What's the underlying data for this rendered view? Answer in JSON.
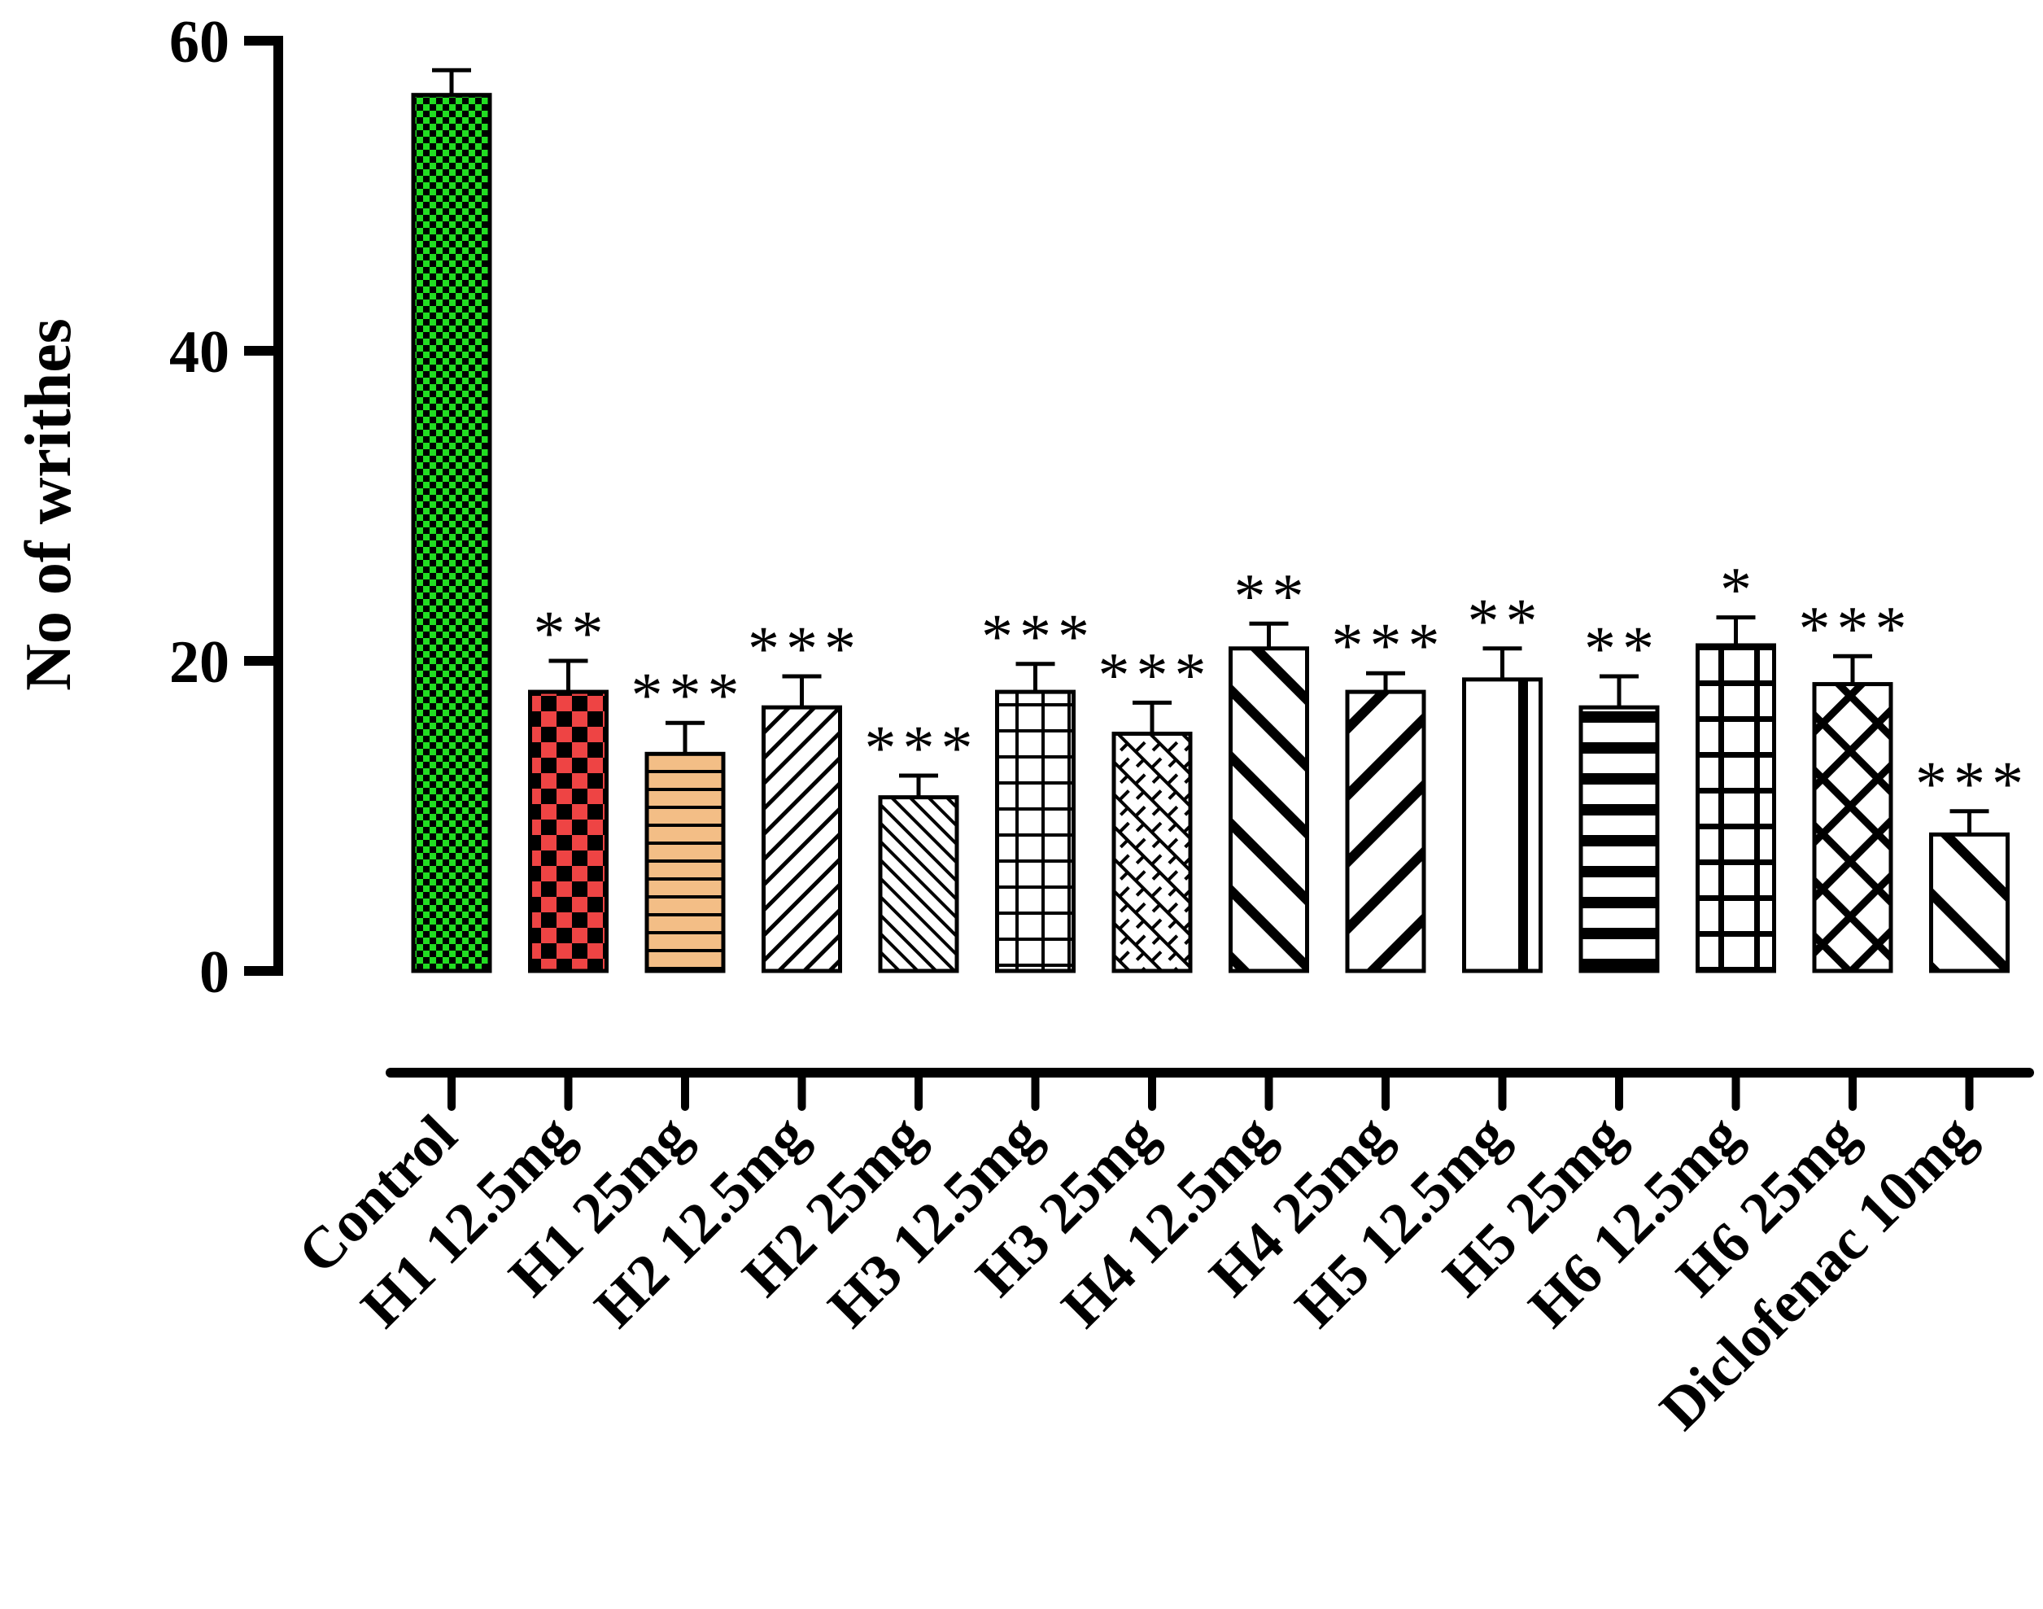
{
  "chart_data": {
    "type": "bar",
    "title": "",
    "xlabel": "",
    "ylabel": "No of writhes",
    "ylim": [
      0,
      60
    ],
    "yticks": [
      "0",
      "20",
      "40",
      "60"
    ],
    "grid": false,
    "categories": [
      "Control",
      "H1 12.5mg",
      "H1 25mg",
      "H2 12.5mg",
      "H2 25mg",
      "H3 12.5mg",
      "H3 25mg",
      "H4 12.5mg",
      "H4 25mg",
      "H5 12.5mg",
      "H5 25mg",
      "H6 12.5mg",
      "H6 25mg",
      "Diclofenac 10mg"
    ],
    "values": [
      56.5,
      18,
      14,
      17,
      11.2,
      18,
      15.3,
      20.8,
      18,
      18.8,
      17,
      21,
      18.5,
      8.8
    ],
    "errors": [
      1.6,
      2,
      2,
      2,
      1.4,
      1.8,
      2,
      1.6,
      1.2,
      2,
      2,
      1.8,
      1.8,
      1.5
    ],
    "significance": [
      "",
      "**",
      "***",
      "***",
      "***",
      "***",
      "***",
      "**",
      "***",
      "**",
      "**",
      "*",
      "***",
      "***"
    ],
    "bar_styles": [
      {
        "pattern": "checker-small",
        "fill": "#22dd22",
        "ink": "#000000"
      },
      {
        "pattern": "checker-large",
        "fill": "#ee4444",
        "ink": "#000000"
      },
      {
        "pattern": "hlines-thin",
        "fill": "#f3be86",
        "ink": "#000000"
      },
      {
        "pattern": "diag-up-thin",
        "fill": "#ffffff",
        "ink": "#000000"
      },
      {
        "pattern": "diag-down-thin",
        "fill": "#ffffff",
        "ink": "#000000"
      },
      {
        "pattern": "grid",
        "fill": "#ffffff",
        "ink": "#000000"
      },
      {
        "pattern": "brick",
        "fill": "#ffffff",
        "ink": "#000000"
      },
      {
        "pattern": "diag-down-thick",
        "fill": "#ffffff",
        "ink": "#000000"
      },
      {
        "pattern": "diag-up-thick",
        "fill": "#ffffff",
        "ink": "#000000"
      },
      {
        "pattern": "vline-thick",
        "fill": "#ffffff",
        "ink": "#000000"
      },
      {
        "pattern": "hlines-thick",
        "fill": "#ffffff",
        "ink": "#000000"
      },
      {
        "pattern": "grid-thick",
        "fill": "#ffffff",
        "ink": "#000000"
      },
      {
        "pattern": "crosshatch-thick",
        "fill": "#ffffff",
        "ink": "#000000"
      },
      {
        "pattern": "diag-down-wide",
        "fill": "#ffffff",
        "ink": "#000000"
      }
    ]
  }
}
